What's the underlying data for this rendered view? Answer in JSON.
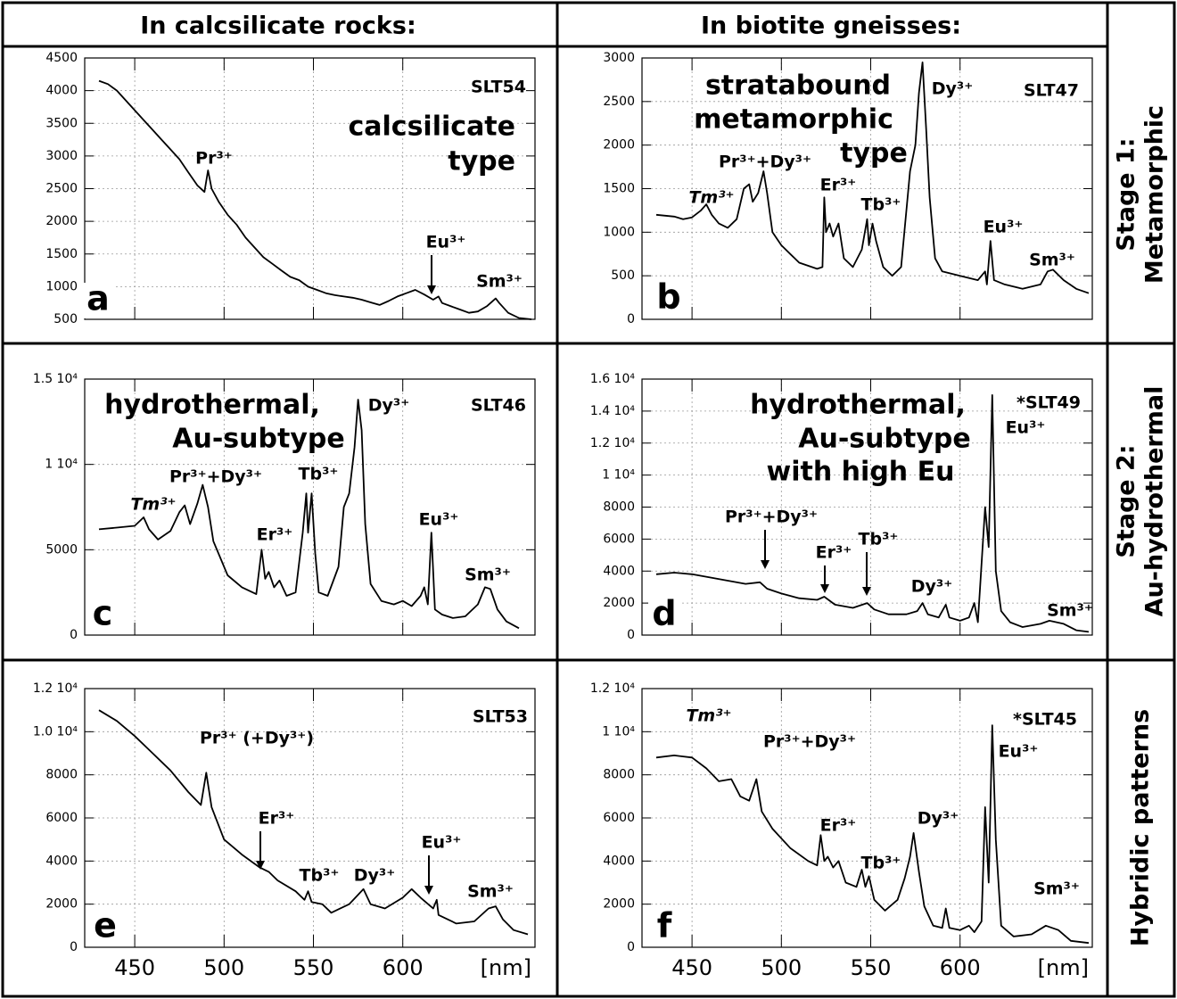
{
  "headers": [
    "In calcsilicate rocks:",
    "In biotite gneisses:"
  ],
  "row_labels": [
    [
      "Stage 1:",
      "Metamorphic"
    ],
    [
      "Stage 2:",
      "Au-hydrothermal"
    ],
    [
      "Hybridic patterns"
    ]
  ],
  "chart_data": [
    {
      "type": "line",
      "label": "a",
      "sample": "SLT54",
      "notes": [
        "calcsilicate",
        "type"
      ],
      "xlim": [
        422,
        674
      ],
      "xticks": [
        450,
        500,
        550,
        600
      ],
      "ylim": [
        500,
        4500
      ],
      "yticks": [
        500,
        1000,
        1500,
        2000,
        2500,
        3000,
        3500,
        4000,
        4500
      ],
      "grid": true,
      "color": "#000000",
      "x": [
        430,
        435,
        440,
        445,
        450,
        455,
        460,
        465,
        470,
        475,
        480,
        485,
        489,
        491,
        493,
        497,
        502,
        507,
        512,
        517,
        522,
        527,
        532,
        537,
        542,
        547,
        552,
        557,
        562,
        567,
        572,
        577,
        582,
        587,
        592,
        597,
        602,
        607,
        612,
        617,
        620,
        622,
        627,
        632,
        637,
        642,
        647,
        652,
        654,
        659,
        665,
        672
      ],
      "values": [
        4150,
        4100,
        4000,
        3850,
        3700,
        3550,
        3400,
        3250,
        3100,
        2950,
        2750,
        2550,
        2450,
        2780,
        2500,
        2300,
        2100,
        1950,
        1750,
        1600,
        1450,
        1350,
        1250,
        1150,
        1100,
        1000,
        950,
        900,
        870,
        850,
        830,
        800,
        760,
        720,
        780,
        850,
        900,
        950,
        880,
        800,
        850,
        750,
        700,
        650,
        600,
        620,
        700,
        820,
        750,
        600,
        520,
        500
      ],
      "annotations": [
        {
          "text": "Pr³⁺"
        },
        {
          "text": "Eu³⁺",
          "arrow": true
        },
        {
          "text": "Sm³⁺"
        }
      ]
    },
    {
      "type": "line",
      "label": "b",
      "sample": "SLT47",
      "notes": [
        "stratabound",
        "metamorphic",
        "type"
      ],
      "xlim": [
        422,
        674
      ],
      "xticks": [
        450,
        500,
        550,
        600
      ],
      "ylim": [
        0,
        3000
      ],
      "yticks": [
        0,
        500,
        1000,
        1500,
        2000,
        2500,
        3000
      ],
      "grid": true,
      "color": "#000000",
      "x": [
        430,
        440,
        445,
        450,
        455,
        458,
        461,
        465,
        470,
        475,
        479,
        482,
        484,
        487,
        490,
        492,
        495,
        500,
        505,
        510,
        520,
        523,
        524,
        525,
        527,
        529,
        532,
        535,
        540,
        545,
        548,
        549,
        551,
        553,
        557,
        562,
        567,
        572,
        575,
        577,
        579,
        581,
        583,
        586,
        590,
        600,
        610,
        614,
        615,
        617,
        619,
        625,
        635,
        645,
        649,
        652,
        658,
        665,
        672
      ],
      "values": [
        1200,
        1180,
        1150,
        1170,
        1250,
        1320,
        1200,
        1100,
        1050,
        1150,
        1500,
        1550,
        1350,
        1450,
        1700,
        1450,
        1000,
        850,
        750,
        650,
        580,
        600,
        1400,
        1000,
        1100,
        950,
        1100,
        700,
        600,
        800,
        1150,
        850,
        1100,
        900,
        600,
        500,
        600,
        1700,
        2000,
        2600,
        2950,
        2200,
        1400,
        700,
        550,
        500,
        450,
        550,
        400,
        900,
        450,
        400,
        350,
        400,
        550,
        570,
        450,
        350,
        300
      ],
      "annotations": [
        {
          "text": "Tm³⁺",
          "italic": true
        },
        {
          "text": "Pr³⁺+Dy³⁺"
        },
        {
          "text": "Er³⁺"
        },
        {
          "text": "Tb³⁺"
        },
        {
          "text": "Dy³⁺"
        },
        {
          "text": "Eu³⁺"
        },
        {
          "text": "Sm³⁺"
        }
      ]
    },
    {
      "type": "line",
      "label": "c",
      "sample": "SLT46",
      "notes": [
        "hydrothermal,",
        "Au-subtype"
      ],
      "xlim": [
        422,
        674
      ],
      "xticks": [
        450,
        500,
        550,
        600
      ],
      "ylim": [
        0,
        15000
      ],
      "yticks": [
        0,
        5000,
        {
          "value": 10000,
          "label": "1 10⁴"
        },
        {
          "value": 15000,
          "label": "1.5 10⁴"
        }
      ],
      "grid": true,
      "color": "#000000",
      "x": [
        430,
        440,
        450,
        455,
        458,
        463,
        470,
        475,
        478,
        481,
        485,
        488,
        491,
        494,
        498,
        502,
        510,
        518,
        521,
        523,
        525,
        528,
        531,
        535,
        540,
        544,
        546,
        547,
        549,
        551,
        553,
        558,
        564,
        567,
        570,
        573,
        575,
        577,
        579,
        582,
        588,
        595,
        600,
        605,
        610,
        612,
        614,
        616,
        618,
        622,
        628,
        635,
        642,
        646,
        649,
        653,
        658,
        665
      ],
      "values": [
        6200,
        6300,
        6400,
        6900,
        6200,
        5600,
        6100,
        7200,
        7600,
        6500,
        7700,
        8800,
        7500,
        5500,
        4500,
        3500,
        2800,
        2400,
        5000,
        3300,
        3700,
        2800,
        3200,
        2300,
        2500,
        6000,
        8300,
        6000,
        8300,
        4800,
        2500,
        2300,
        4000,
        7500,
        8300,
        11000,
        13800,
        12000,
        6500,
        3000,
        2000,
        1800,
        2000,
        1700,
        2300,
        2800,
        1800,
        6000,
        1500,
        1200,
        1000,
        1100,
        1800,
        2800,
        2700,
        1500,
        800,
        400
      ],
      "annotations": [
        {
          "text": "Tm³⁺",
          "italic": true
        },
        {
          "text": "Pr³⁺+Dy³⁺"
        },
        {
          "text": "Er³⁺"
        },
        {
          "text": "Tb³⁺"
        },
        {
          "text": "Dy³⁺"
        },
        {
          "text": "Eu³⁺"
        },
        {
          "text": "Sm³⁺"
        }
      ]
    },
    {
      "type": "line",
      "label": "d",
      "sample": "*SLT49",
      "notes": [
        "hydrothermal,",
        "Au-subtype",
        "with high Eu"
      ],
      "xlim": [
        422,
        674
      ],
      "xticks": [
        450,
        500,
        550,
        600
      ],
      "ylim": [
        0,
        16000
      ],
      "yticks": [
        0,
        2000,
        4000,
        6000,
        8000,
        {
          "value": 10000,
          "label": "1 10⁴"
        },
        {
          "value": 12000,
          "label": "1.2 10⁴"
        },
        {
          "value": 14000,
          "label": "1.4 10⁴"
        },
        {
          "value": 16000,
          "label": "1.6 10⁴"
        }
      ],
      "grid": true,
      "color": "#000000",
      "x": [
        430,
        440,
        450,
        460,
        470,
        480,
        488,
        492,
        500,
        510,
        520,
        524,
        530,
        540,
        548,
        552,
        560,
        570,
        576,
        579,
        582,
        588,
        592,
        594,
        600,
        605,
        608,
        610,
        614,
        616,
        618,
        620,
        623,
        628,
        635,
        645,
        650,
        658,
        665,
        672
      ],
      "values": [
        3800,
        3900,
        3800,
        3600,
        3400,
        3200,
        3300,
        2900,
        2600,
        2300,
        2200,
        2400,
        1900,
        1700,
        2000,
        1600,
        1300,
        1300,
        1500,
        2000,
        1300,
        1100,
        1900,
        1100,
        900,
        1100,
        2000,
        800,
        8000,
        5500,
        15000,
        4000,
        1500,
        800,
        500,
        700,
        900,
        700,
        300,
        200
      ],
      "annotations": [
        {
          "text": "Pr³⁺+Dy³⁺",
          "arrow": true
        },
        {
          "text": "Er³⁺",
          "arrow": true
        },
        {
          "text": "Tb³⁺",
          "arrow": true
        },
        {
          "text": "Dy³⁺"
        },
        {
          "text": "Eu³⁺"
        },
        {
          "text": "Sm³⁺"
        }
      ]
    },
    {
      "type": "line",
      "label": "e",
      "sample": "SLT53",
      "notes": [],
      "x_label": "[nm]",
      "xlim": [
        422,
        674
      ],
      "xticks": [
        450,
        500,
        550,
        600
      ],
      "ylim": [
        0,
        12000
      ],
      "yticks": [
        0,
        2000,
        4000,
        6000,
        8000,
        {
          "value": 10000,
          "label": "1.0 10⁴"
        },
        {
          "value": 12000,
          "label": "1.2 10⁴"
        }
      ],
      "grid": true,
      "color": "#000000",
      "x": [
        430,
        440,
        450,
        460,
        470,
        480,
        487,
        490,
        493,
        500,
        510,
        520,
        525,
        530,
        540,
        545,
        547,
        549,
        555,
        560,
        570,
        578,
        582,
        590,
        600,
        605,
        610,
        617,
        619,
        620,
        630,
        640,
        648,
        652,
        656,
        662,
        670
      ],
      "values": [
        11000,
        10500,
        9800,
        9000,
        8200,
        7200,
        6600,
        8100,
        6500,
        5000,
        4300,
        3700,
        3500,
        3100,
        2600,
        2200,
        2600,
        2100,
        2000,
        1600,
        2000,
        2700,
        2000,
        1800,
        2300,
        2700,
        2300,
        1800,
        2200,
        1500,
        1100,
        1200,
        1800,
        1900,
        1300,
        800,
        600
      ],
      "annotations": [
        {
          "text": "Pr³⁺ (+Dy³⁺)"
        },
        {
          "text": "Er³⁺",
          "arrow": true
        },
        {
          "text": "Tb³⁺"
        },
        {
          "text": "Dy³⁺"
        },
        {
          "text": "Eu³⁺",
          "arrow": true
        },
        {
          "text": "Sm³⁺"
        }
      ]
    },
    {
      "type": "line",
      "label": "f",
      "sample": "*SLT45",
      "notes": [],
      "x_label": "[nm]",
      "xlim": [
        422,
        674
      ],
      "xticks": [
        450,
        500,
        550,
        600
      ],
      "ylim": [
        0,
        12000
      ],
      "yticks": [
        0,
        2000,
        4000,
        6000,
        8000,
        {
          "value": 10000,
          "label": "1 10⁴"
        },
        {
          "value": 12000,
          "label": "1.2 10⁴"
        }
      ],
      "grid": true,
      "color": "#000000",
      "x": [
        430,
        440,
        450,
        458,
        465,
        472,
        477,
        482,
        486,
        489,
        495,
        505,
        515,
        520,
        522,
        524,
        526,
        529,
        532,
        536,
        542,
        545,
        547,
        549,
        552,
        558,
        565,
        569,
        572,
        574,
        577,
        580,
        585,
        590,
        592,
        594,
        600,
        605,
        608,
        612,
        614,
        616,
        618,
        620,
        623,
        630,
        640,
        648,
        655,
        662,
        672
      ],
      "values": [
        8800,
        8900,
        8800,
        8300,
        7700,
        7800,
        7000,
        6800,
        7800,
        6300,
        5500,
        4600,
        4000,
        3800,
        5200,
        4000,
        4200,
        3700,
        4000,
        3000,
        2800,
        3600,
        2800,
        3300,
        2200,
        1700,
        2200,
        3200,
        4200,
        5300,
        3500,
        1900,
        1000,
        900,
        1800,
        900,
        800,
        1000,
        700,
        1200,
        6500,
        3000,
        10300,
        5000,
        1000,
        500,
        600,
        1000,
        800,
        300,
        200
      ],
      "annotations": [
        {
          "text": "Tm³⁺",
          "italic": true
        },
        {
          "text": "Pr³⁺+Dy³⁺"
        },
        {
          "text": "Er³⁺"
        },
        {
          "text": "Tb³⁺"
        },
        {
          "text": "Dy³⁺"
        },
        {
          "text": "Eu³⁺"
        },
        {
          "text": "Sm³⁺"
        }
      ]
    }
  ]
}
